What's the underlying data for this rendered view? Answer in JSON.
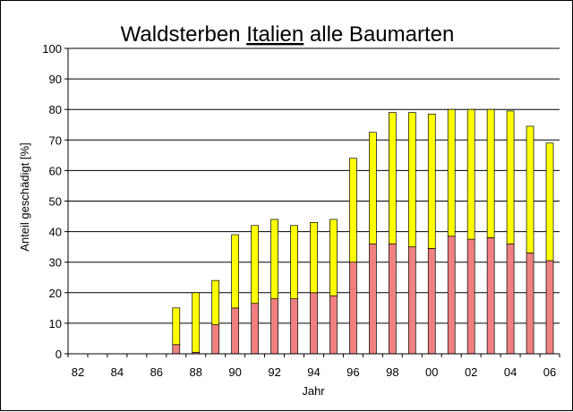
{
  "chart_data": {
    "type": "bar",
    "stacked": true,
    "title_parts": [
      "Waldsterben ",
      "Italien",
      " alle Baumarten"
    ],
    "title_underlined_part": "Italien",
    "xlabel": "Jahr",
    "ylabel": "Anteil geschädigt [%]",
    "ylim": [
      0,
      100
    ],
    "yticks": [
      0,
      10,
      20,
      30,
      40,
      50,
      60,
      70,
      80,
      90,
      100
    ],
    "grid": true,
    "categories": [
      "82",
      "83",
      "84",
      "85",
      "86",
      "87",
      "88",
      "89",
      "90",
      "91",
      "92",
      "93",
      "94",
      "95",
      "96",
      "97",
      "98",
      "99",
      "00",
      "01",
      "02",
      "03",
      "04",
      "05",
      "06"
    ],
    "xtick_labels": [
      "82",
      "84",
      "86",
      "88",
      "90",
      "92",
      "94",
      "96",
      "98",
      "00",
      "02",
      "04",
      "06"
    ],
    "series": [
      {
        "color": "#f08080",
        "values": [
          0,
          0,
          0,
          0,
          0,
          3,
          0.5,
          9.5,
          15,
          16.5,
          18,
          18,
          20,
          19,
          30,
          36,
          36,
          35,
          34.5,
          38.5,
          37.5,
          38,
          36,
          33,
          30.5
        ]
      },
      {
        "color": "#ffff00",
        "values": [
          0,
          0,
          0,
          0,
          0,
          12,
          19.5,
          14.5,
          24,
          25.5,
          26,
          24,
          23,
          25,
          34,
          36.5,
          43,
          44,
          44,
          41.5,
          42.5,
          42,
          43.5,
          41.5,
          38.5
        ]
      }
    ],
    "totals": [
      0,
      0,
      0,
      0,
      0,
      15,
      20,
      24,
      39,
      42,
      44,
      42,
      43,
      44,
      64,
      72.5,
      79,
      79,
      78.5,
      80,
      80,
      80,
      79.5,
      74.5,
      69
    ]
  }
}
